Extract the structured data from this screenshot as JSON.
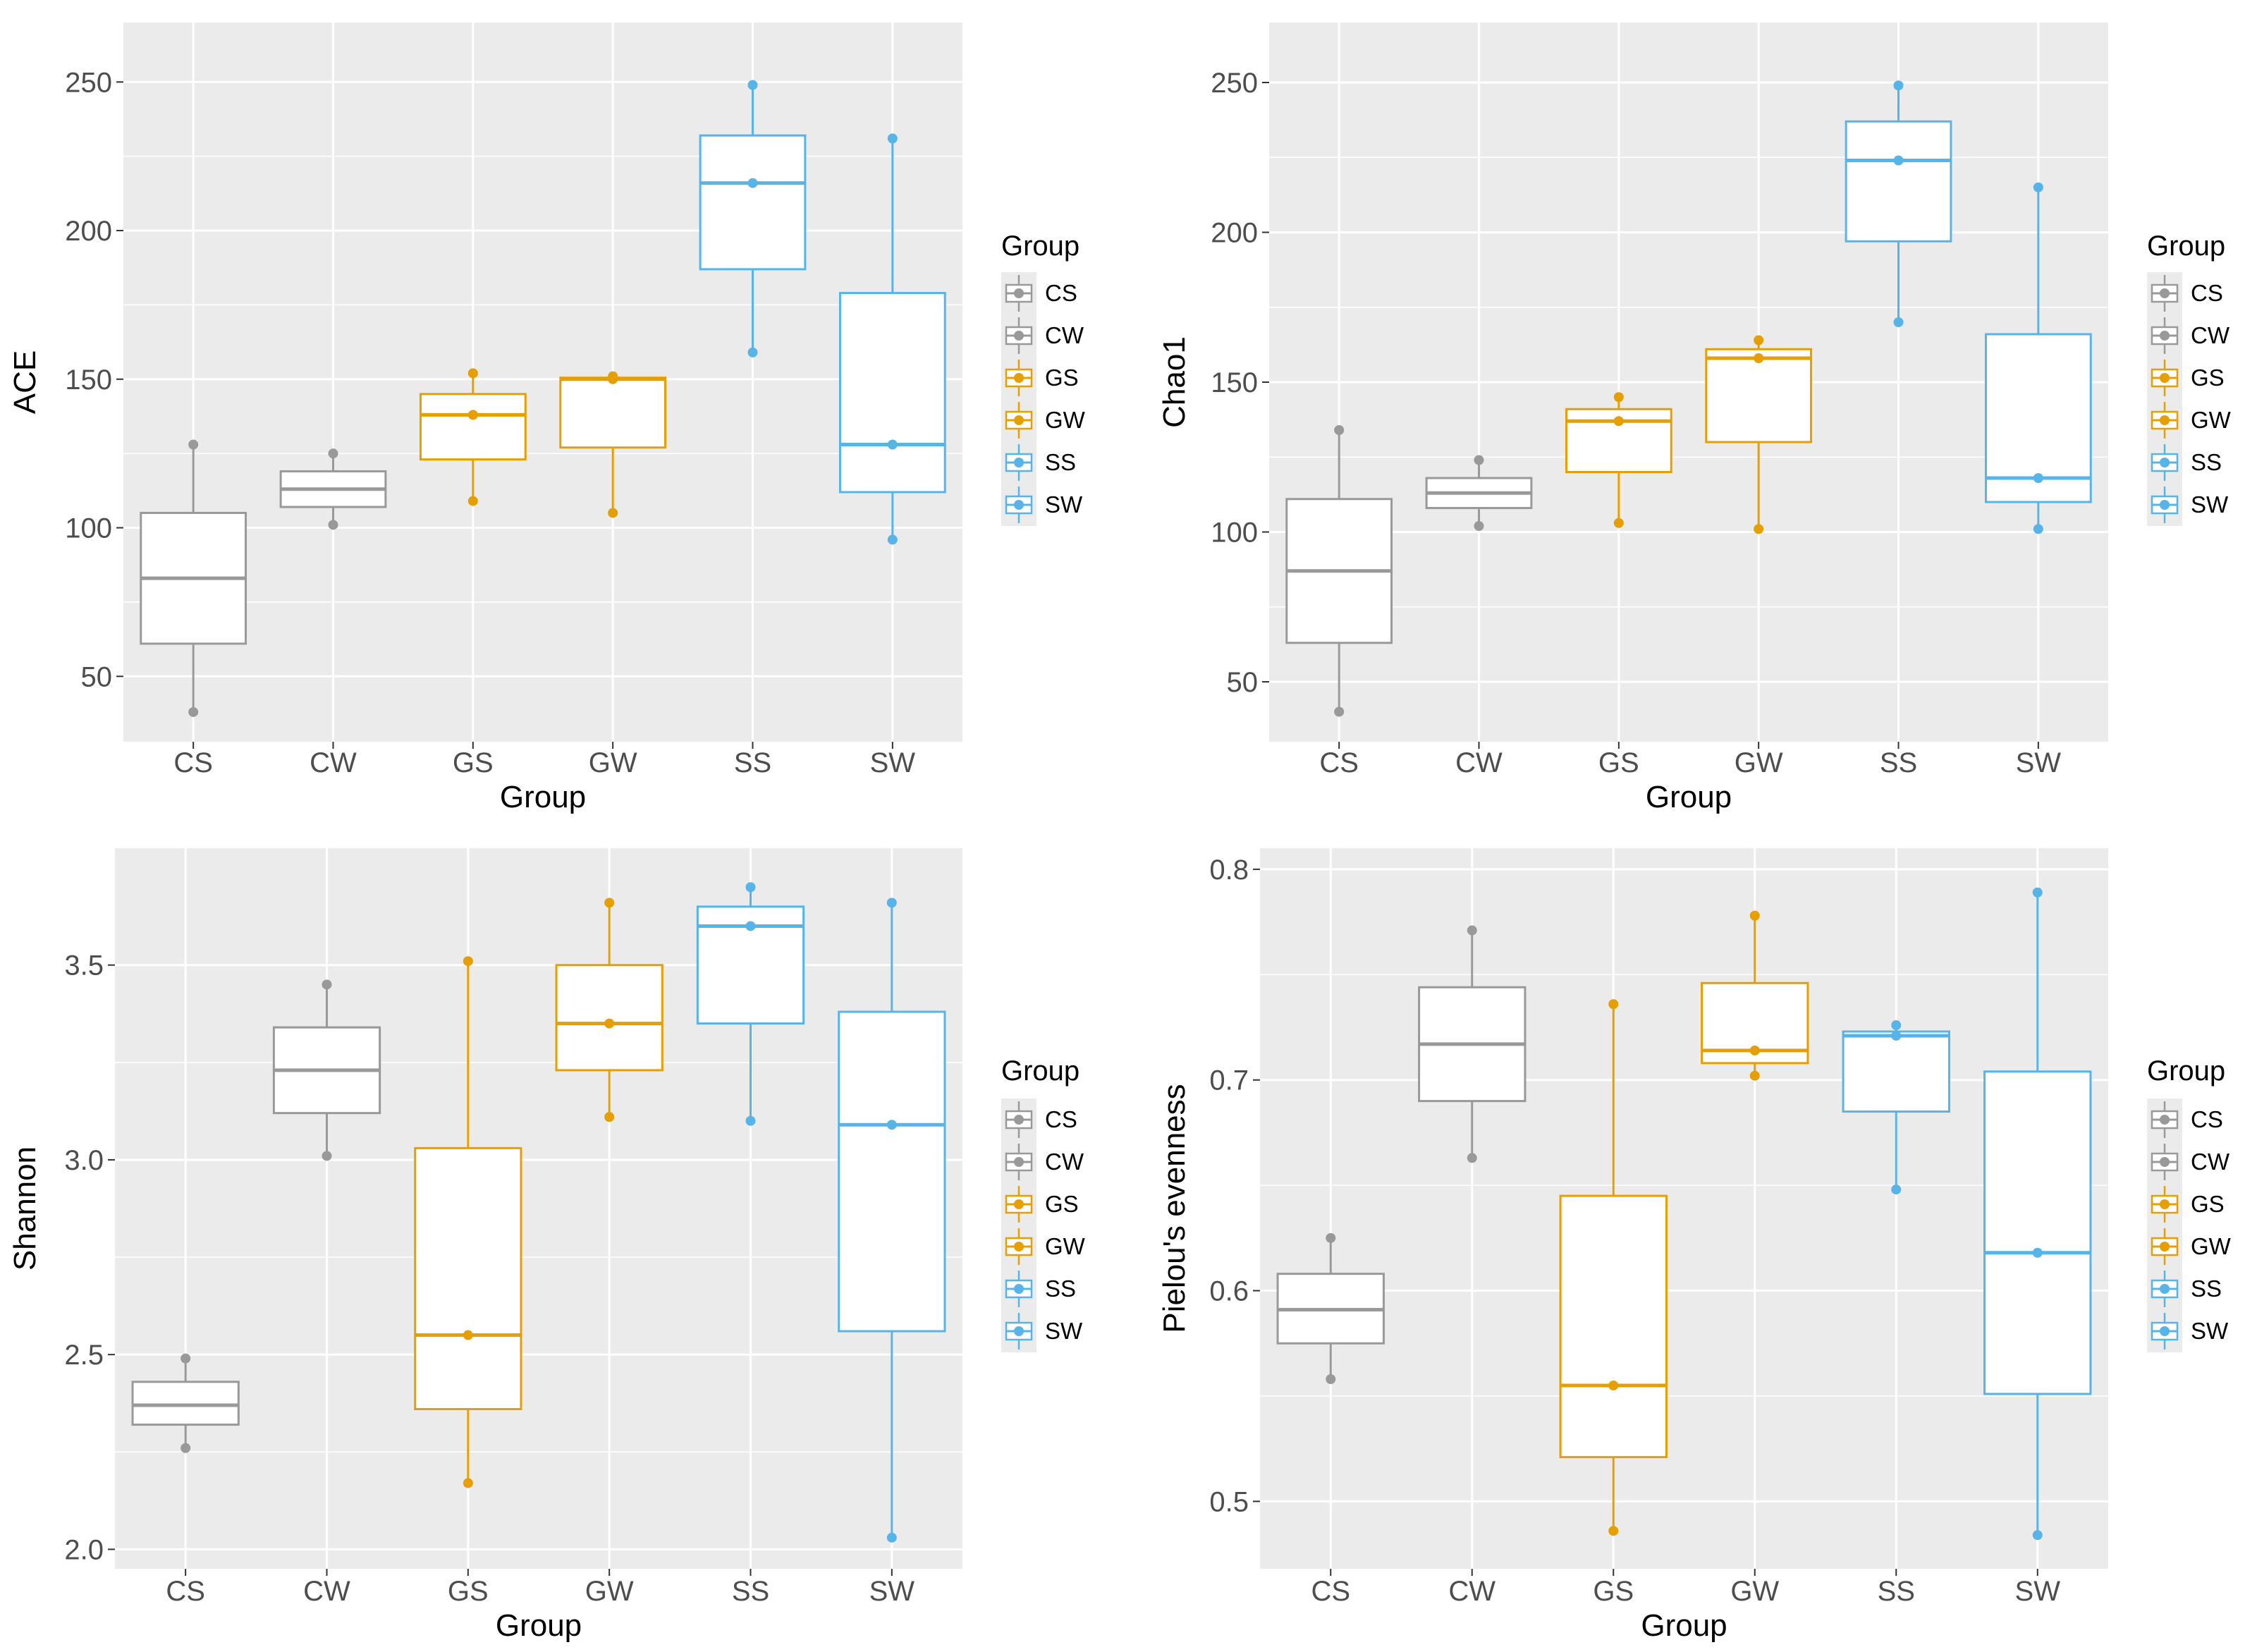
{
  "chart_data": [
    {
      "type": "boxplot",
      "id": "ace",
      "xlabel": "Group",
      "ylabel": "ACE",
      "ylim": [
        28,
        270
      ],
      "yticks": [
        50,
        100,
        150,
        200,
        250
      ],
      "tick_labels": [
        "50",
        "100",
        "150",
        "200",
        "250"
      ],
      "legend_title": "Group",
      "categories": [
        "CS",
        "CW",
        "GS",
        "GW",
        "SS",
        "SW"
      ],
      "boxes": [
        {
          "group": "CS",
          "min": 38,
          "q1": 61,
          "median": 83,
          "q3": 105,
          "max": 128,
          "points": [
            38,
            128
          ]
        },
        {
          "group": "CW",
          "min": 101,
          "q1": 107,
          "median": 113,
          "q3": 119,
          "max": 125,
          "points": [
            101,
            125
          ]
        },
        {
          "group": "GS",
          "min": 109,
          "q1": 123,
          "median": 138,
          "q3": 145,
          "max": 152,
          "points": [
            109,
            138,
            152
          ]
        },
        {
          "group": "GW",
          "min": 105,
          "q1": 127,
          "median": 150,
          "q3": 150.5,
          "max": 151,
          "points": [
            105,
            150,
            151
          ]
        },
        {
          "group": "SS",
          "min": 159,
          "q1": 187,
          "median": 216,
          "q3": 232,
          "max": 249,
          "points": [
            159,
            216,
            249
          ]
        },
        {
          "group": "SW",
          "min": 96,
          "q1": 112,
          "median": 128,
          "q3": 179,
          "max": 231,
          "points": [
            96,
            128,
            231
          ]
        }
      ]
    },
    {
      "type": "boxplot",
      "id": "chao1",
      "xlabel": "Group",
      "ylabel": "Chao1",
      "ylim": [
        30,
        270
      ],
      "yticks": [
        50,
        100,
        150,
        200,
        250
      ],
      "tick_labels": [
        "50",
        "100",
        "150",
        "200",
        "250"
      ],
      "legend_title": "Group",
      "categories": [
        "CS",
        "CW",
        "GS",
        "GW",
        "SS",
        "SW"
      ],
      "boxes": [
        {
          "group": "CS",
          "min": 40,
          "q1": 63,
          "median": 87,
          "q3": 111,
          "max": 134,
          "points": [
            40,
            134
          ]
        },
        {
          "group": "CW",
          "min": 102,
          "q1": 108,
          "median": 113,
          "q3": 118,
          "max": 124,
          "points": [
            102,
            124
          ]
        },
        {
          "group": "GS",
          "min": 103,
          "q1": 120,
          "median": 137,
          "q3": 141,
          "max": 145,
          "points": [
            103,
            137,
            145
          ]
        },
        {
          "group": "GW",
          "min": 101,
          "q1": 130,
          "median": 158,
          "q3": 161,
          "max": 164,
          "points": [
            101,
            158,
            164
          ]
        },
        {
          "group": "SS",
          "min": 170,
          "q1": 197,
          "median": 224,
          "q3": 237,
          "max": 249,
          "points": [
            170,
            224,
            249
          ]
        },
        {
          "group": "SW",
          "min": 101,
          "q1": 110,
          "median": 118,
          "q3": 166,
          "max": 215,
          "points": [
            101,
            118,
            215
          ]
        }
      ]
    },
    {
      "type": "boxplot",
      "id": "shannon",
      "xlabel": "Group",
      "ylabel": "Shannon",
      "ylim": [
        1.95,
        3.8
      ],
      "yticks": [
        2.0,
        2.5,
        3.0,
        3.5
      ],
      "tick_labels": [
        "2.0",
        "2.5",
        "3.0",
        "3.5"
      ],
      "legend_title": "Group",
      "categories": [
        "CS",
        "CW",
        "GS",
        "GW",
        "SS",
        "SW"
      ],
      "boxes": [
        {
          "group": "CS",
          "min": 2.26,
          "q1": 2.32,
          "median": 2.37,
          "q3": 2.43,
          "max": 2.49,
          "points": [
            2.26,
            2.49
          ]
        },
        {
          "group": "CW",
          "min": 3.01,
          "q1": 3.12,
          "median": 3.23,
          "q3": 3.34,
          "max": 3.45,
          "points": [
            3.01,
            3.45
          ]
        },
        {
          "group": "GS",
          "min": 2.17,
          "q1": 2.36,
          "median": 2.55,
          "q3": 3.03,
          "max": 3.51,
          "points": [
            2.17,
            2.55,
            3.51
          ]
        },
        {
          "group": "GW",
          "min": 3.11,
          "q1": 3.23,
          "median": 3.35,
          "q3": 3.5,
          "max": 3.66,
          "points": [
            3.11,
            3.35,
            3.66
          ]
        },
        {
          "group": "SS",
          "min": 3.1,
          "q1": 3.35,
          "median": 3.6,
          "q3": 3.65,
          "max": 3.7,
          "points": [
            3.1,
            3.6,
            3.7
          ]
        },
        {
          "group": "SW",
          "min": 2.03,
          "q1": 2.56,
          "median": 3.09,
          "q3": 3.38,
          "max": 3.66,
          "points": [
            2.03,
            3.09,
            3.66
          ]
        }
      ]
    },
    {
      "type": "boxplot",
      "id": "pielou",
      "xlabel": "Group",
      "ylabel": "Pielou's evenness",
      "ylim": [
        0.468,
        0.81
      ],
      "yticks": [
        0.5,
        0.6,
        0.7,
        0.8
      ],
      "tick_labels": [
        "0.5",
        "0.6",
        "0.7",
        "0.8"
      ],
      "legend_title": "Group",
      "categories": [
        "CS",
        "CW",
        "GS",
        "GW",
        "SS",
        "SW"
      ],
      "boxes": [
        {
          "group": "CS",
          "min": 0.558,
          "q1": 0.575,
          "median": 0.591,
          "q3": 0.608,
          "max": 0.625,
          "points": [
            0.558,
            0.625
          ]
        },
        {
          "group": "CW",
          "min": 0.663,
          "q1": 0.69,
          "median": 0.717,
          "q3": 0.744,
          "max": 0.771,
          "points": [
            0.663,
            0.771
          ]
        },
        {
          "group": "GS",
          "min": 0.486,
          "q1": 0.521,
          "median": 0.555,
          "q3": 0.645,
          "max": 0.736,
          "points": [
            0.486,
            0.555,
            0.736
          ]
        },
        {
          "group": "GW",
          "min": 0.702,
          "q1": 0.708,
          "median": 0.714,
          "q3": 0.746,
          "max": 0.778,
          "points": [
            0.702,
            0.714,
            0.778
          ]
        },
        {
          "group": "SS",
          "min": 0.648,
          "q1": 0.685,
          "median": 0.721,
          "q3": 0.723,
          "max": 0.726,
          "points": [
            0.648,
            0.721,
            0.726
          ]
        },
        {
          "group": "SW",
          "min": 0.484,
          "q1": 0.551,
          "median": 0.618,
          "q3": 0.704,
          "max": 0.789,
          "points": [
            0.484,
            0.618,
            0.789
          ]
        }
      ]
    }
  ],
  "legend": {
    "title": "Group",
    "entries": [
      "CS",
      "CW",
      "GS",
      "GW",
      "SS",
      "SW"
    ]
  },
  "colors": {
    "CS": "#999999",
    "CW": "#999999",
    "GS": "#E69F00",
    "GW": "#E69F00",
    "SS": "#56B4E9",
    "SW": "#56B4E9",
    "panel_background": "#EBEBEB",
    "grid": "#FFFFFF",
    "tick_text": "#4D4D4D",
    "tick_mark": "#333333"
  }
}
